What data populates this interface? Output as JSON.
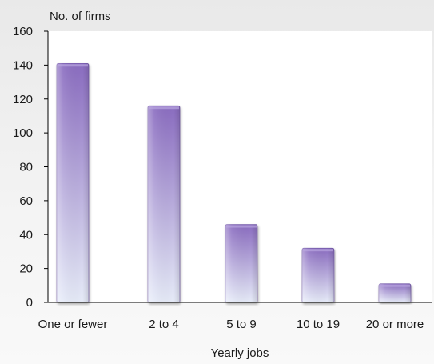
{
  "chart_data": {
    "type": "bar",
    "title": "",
    "ylabel": "No. of firms",
    "xlabel": "Yearly jobs",
    "categories": [
      "One or fewer",
      "2 to 4",
      "5 to 9",
      "10 to 19",
      "20 or more"
    ],
    "values": [
      141,
      116,
      46,
      32,
      11
    ],
    "ylim": [
      0,
      160
    ],
    "yticks": [
      0,
      20,
      40,
      60,
      80,
      100,
      120,
      140,
      160
    ],
    "grid": false,
    "legend": "none",
    "colors": {
      "bar_top": "#8a6cc0",
      "bar_bottom": "#e6ebf8",
      "axis": "#000000",
      "plot_background": "#ffffff"
    }
  }
}
